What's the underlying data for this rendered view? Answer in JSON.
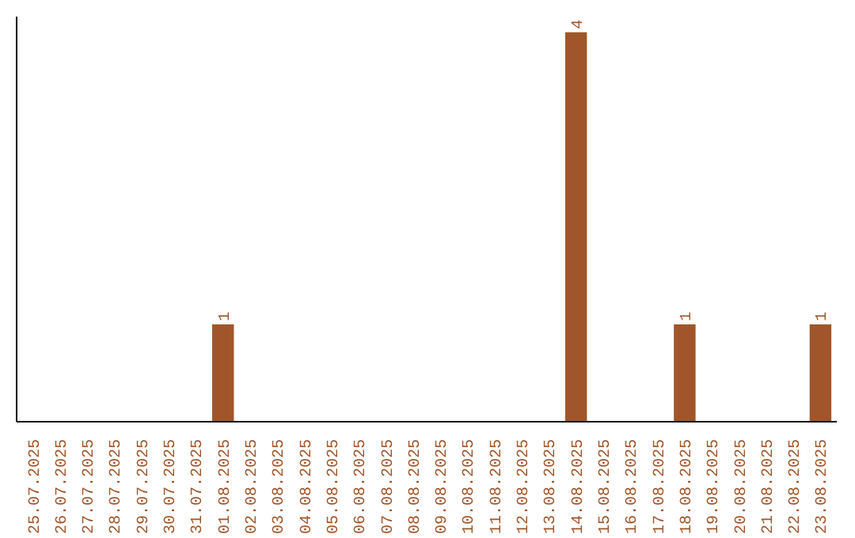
{
  "chart_data": {
    "type": "bar",
    "categories": [
      "25.07.2025",
      "26.07.2025",
      "27.07.2025",
      "28.07.2025",
      "29.07.2025",
      "30.07.2025",
      "31.07.2025",
      "01.08.2025",
      "02.08.2025",
      "03.08.2025",
      "04.08.2025",
      "05.08.2025",
      "06.08.2025",
      "07.08.2025",
      "08.08.2025",
      "09.08.2025",
      "10.08.2025",
      "11.08.2025",
      "12.08.2025",
      "13.08.2025",
      "14.08.2025",
      "15.08.2025",
      "16.08.2025",
      "17.08.2025",
      "18.08.2025",
      "19.08.2025",
      "20.08.2025",
      "21.08.2025",
      "22.08.2025",
      "23.08.2025"
    ],
    "values": [
      0,
      0,
      0,
      0,
      0,
      0,
      0,
      1,
      0,
      0,
      0,
      0,
      0,
      0,
      0,
      0,
      0,
      0,
      0,
      0,
      4,
      0,
      0,
      0,
      1,
      0,
      0,
      0,
      0,
      1
    ],
    "value_labels": [
      null,
      null,
      null,
      null,
      null,
      null,
      null,
      "1",
      null,
      null,
      null,
      null,
      null,
      null,
      null,
      null,
      null,
      null,
      null,
      null,
      "4",
      null,
      null,
      null,
      "1",
      null,
      null,
      null,
      null,
      "1"
    ],
    "color": "#a0562a",
    "tick_labels": "x",
    "grid": false
  }
}
